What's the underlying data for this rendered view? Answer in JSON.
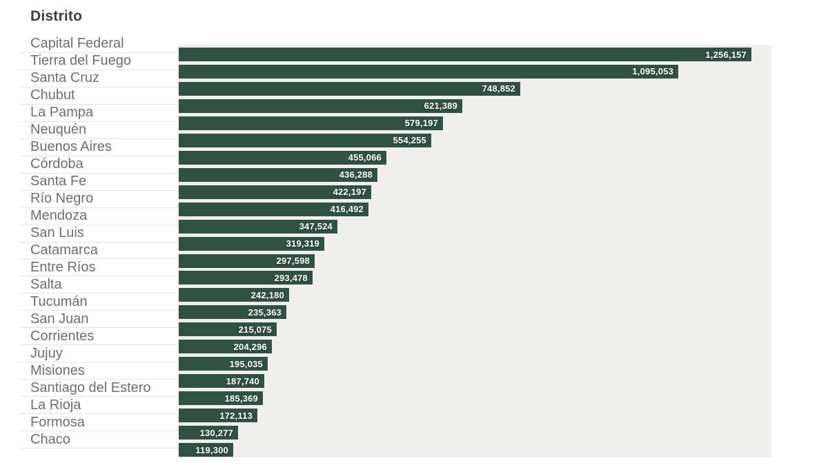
{
  "header": {
    "title": "Distrito"
  },
  "chart_data": {
    "type": "bar",
    "orientation": "horizontal",
    "title": "Distrito",
    "xlabel": "",
    "ylabel": "Distrito",
    "xlim": [
      0,
      1300000
    ],
    "grid": false,
    "legend": false,
    "sort": "descending",
    "categories": [
      "Capital Federal",
      "Tierra del Fuego",
      "Santa Cruz",
      "Chubut",
      "La Pampa",
      "Neuquén",
      "Buenos Aires",
      "Córdoba",
      "Santa Fe",
      "Río Negro",
      "Mendoza",
      "San Luis",
      "Catamarca",
      "Entre Ríos",
      "Salta",
      "Tucumán",
      "San Juan",
      "Corrientes",
      "Jujuy",
      "Misiones",
      "Santiago del Estero",
      "La Rioja",
      "Formosa",
      "Chaco"
    ],
    "values": [
      1256157,
      1095053,
      748852,
      621389,
      579197,
      554255,
      455066,
      436288,
      422197,
      416492,
      347524,
      319319,
      297598,
      293478,
      242180,
      235363,
      215075,
      204296,
      195035,
      187740,
      185369,
      172113,
      130277,
      119300
    ],
    "value_labels": [
      "1,256,157",
      "1,095,053",
      "748,852",
      "621,389",
      "579,197",
      "554,255",
      "455,066",
      "436,288",
      "422,197",
      "416,492",
      "347,524",
      "319,319",
      "297,598",
      "293,478",
      "242,180",
      "235,363",
      "215,075",
      "204,296",
      "195,035",
      "187,740",
      "185,369",
      "172,113",
      "130,277",
      "119,300"
    ],
    "colors": {
      "bar": "#2f5243",
      "plot_background": "#efefee",
      "category_label": "#6e6e6e",
      "separator_line": "#e4e4e2",
      "value_label": "#ffffff",
      "title": "#3d3d3d"
    }
  }
}
